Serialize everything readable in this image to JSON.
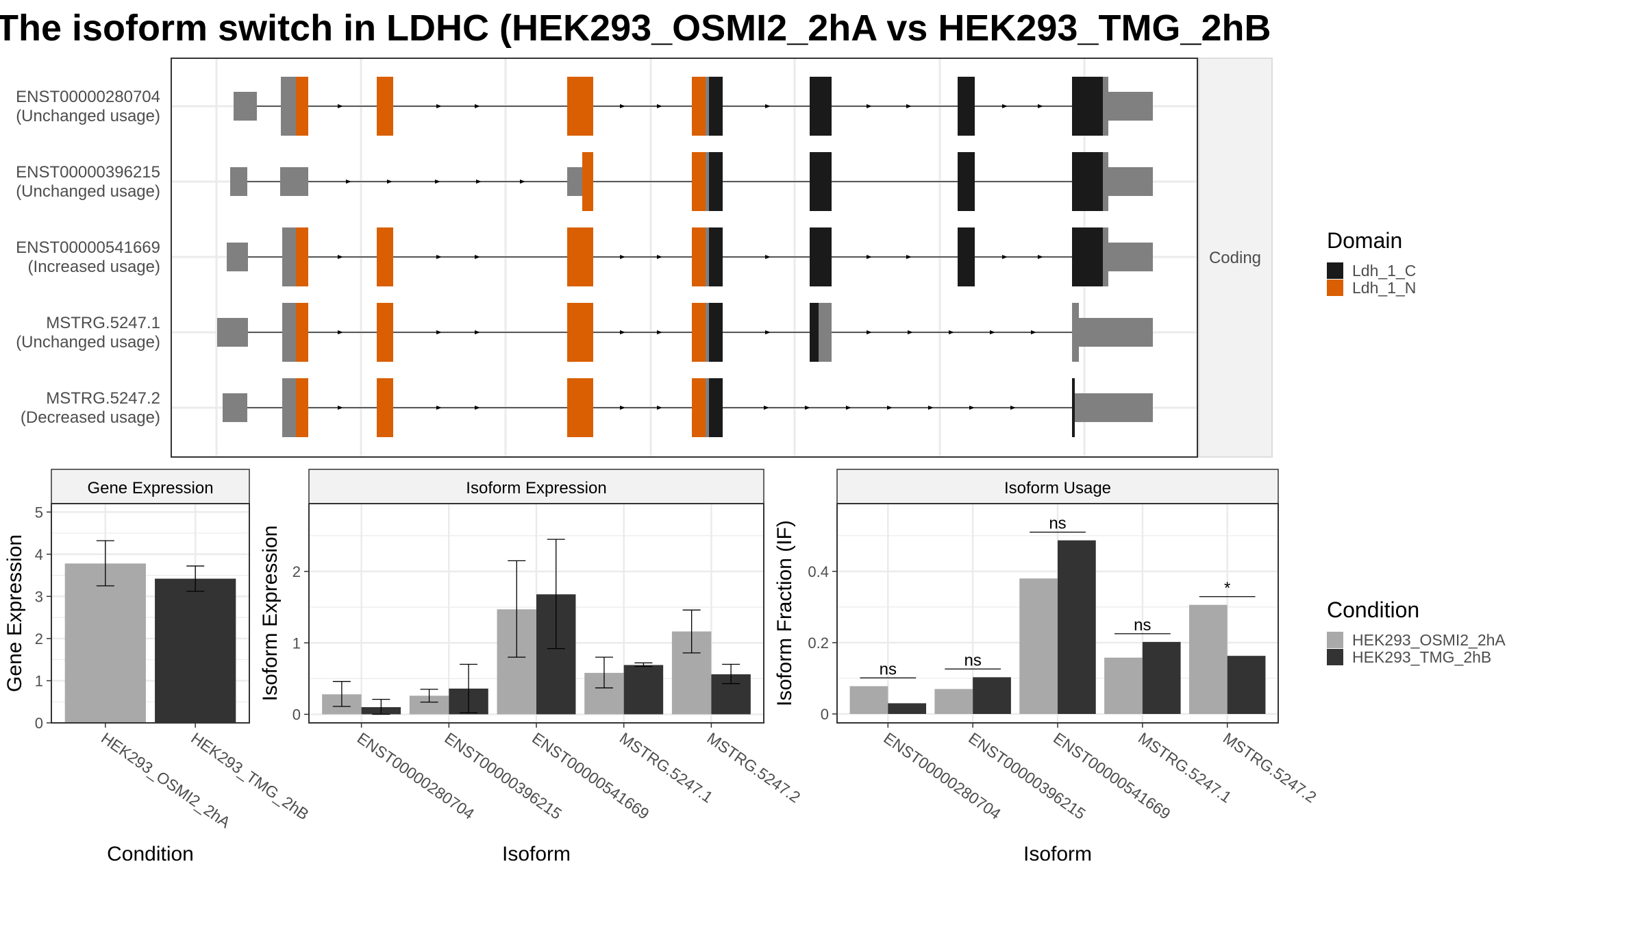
{
  "title": "The isoform switch in LDHC (HEK293_OSMI2_2hA vs HEK293_TMG_2hB",
  "colors": {
    "ldh_c": "#1a1a1a",
    "ldh_n": "#d95f02",
    "utr": "#808080",
    "cond_a": "#a9a9a9",
    "cond_b": "#333333",
    "grid": "#ebebeb",
    "strip": "#f2f2f2",
    "panel_border": "#333333",
    "intron": "#000000"
  },
  "structure": {
    "strip_label": "Coding",
    "isoforms": [
      {
        "id": "ENST00000280704",
        "status": "(Unchanged usage)"
      },
      {
        "id": "ENST00000396215",
        "status": "(Unchanged usage)"
      },
      {
        "id": "ENST00000541669",
        "status": "(Increased usage)"
      },
      {
        "id": "MSTRG.5247.1",
        "status": "(Unchanged usage)"
      },
      {
        "id": "MSTRG.5247.2",
        "status": "(Decreased usage)"
      }
    ],
    "legend_title": "Domain",
    "domains": [
      {
        "label": "Ldh_1_C",
        "color": "#1a1a1a"
      },
      {
        "label": "Ldh_1_N",
        "color": "#d95f02"
      }
    ]
  },
  "condition_legend": {
    "title": "Condition",
    "items": [
      {
        "label": "HEK293_OSMI2_2hA",
        "color": "#a9a9a9"
      },
      {
        "label": "HEK293_TMG_2hB",
        "color": "#333333"
      }
    ]
  },
  "chart_data": [
    {
      "type": "bar",
      "title": "Gene Expression",
      "xlabel": "Condition",
      "ylabel": "Gene Expression",
      "ylim": [
        0,
        5.2
      ],
      "yticks": [
        0,
        1,
        2,
        3,
        4,
        5
      ],
      "grid": true,
      "categories": [
        "HEK293_OSMI2_2hA",
        "HEK293_TMG_2hB"
      ],
      "values": [
        3.78,
        3.42
      ],
      "error_low": [
        3.25,
        3.12
      ],
      "error_high": [
        4.32,
        3.72
      ]
    },
    {
      "type": "bar",
      "title": "Isoform Expression",
      "xlabel": "Isoform",
      "ylabel": "Isoform Expression",
      "ylim": [
        -0.12,
        2.95
      ],
      "yticks": [
        0,
        1,
        2
      ],
      "grid": true,
      "categories": [
        "ENST00000280704",
        "ENST00000396215",
        "ENST00000541669",
        "MSTRG.5247.1",
        "MSTRG.5247.2"
      ],
      "series": [
        {
          "name": "HEK293_OSMI2_2hA",
          "values": [
            0.28,
            0.26,
            1.47,
            0.58,
            1.16
          ],
          "error_low": [
            0.11,
            0.17,
            0.8,
            0.37,
            0.86
          ],
          "error_high": [
            0.46,
            0.35,
            2.15,
            0.8,
            1.46
          ]
        },
        {
          "name": "HEK293_TMG_2hB",
          "values": [
            0.1,
            0.36,
            1.68,
            0.69,
            0.56
          ],
          "error_low": [
            0.0,
            0.02,
            0.92,
            0.67,
            0.43
          ],
          "error_high": [
            0.21,
            0.7,
            2.45,
            0.72,
            0.7
          ]
        }
      ]
    },
    {
      "type": "bar",
      "title": "Isoform Usage",
      "xlabel": "Isoform",
      "ylabel": "Isoform Fraction (IF)",
      "ylim": [
        -0.025,
        0.59
      ],
      "yticks": [
        0.0,
        0.2,
        0.4
      ],
      "grid": true,
      "categories": [
        "ENST00000280704",
        "ENST00000396215",
        "ENST00000541669",
        "MSTRG.5247.1",
        "MSTRG.5247.2"
      ],
      "series": [
        {
          "name": "HEK293_OSMI2_2hA",
          "values": [
            0.078,
            0.07,
            0.38,
            0.158,
            0.306
          ]
        },
        {
          "name": "HEK293_TMG_2hB",
          "values": [
            0.03,
            0.103,
            0.487,
            0.202,
            0.163
          ]
        }
      ],
      "significance": [
        "ns",
        "ns",
        "ns",
        "ns",
        "*"
      ]
    }
  ]
}
